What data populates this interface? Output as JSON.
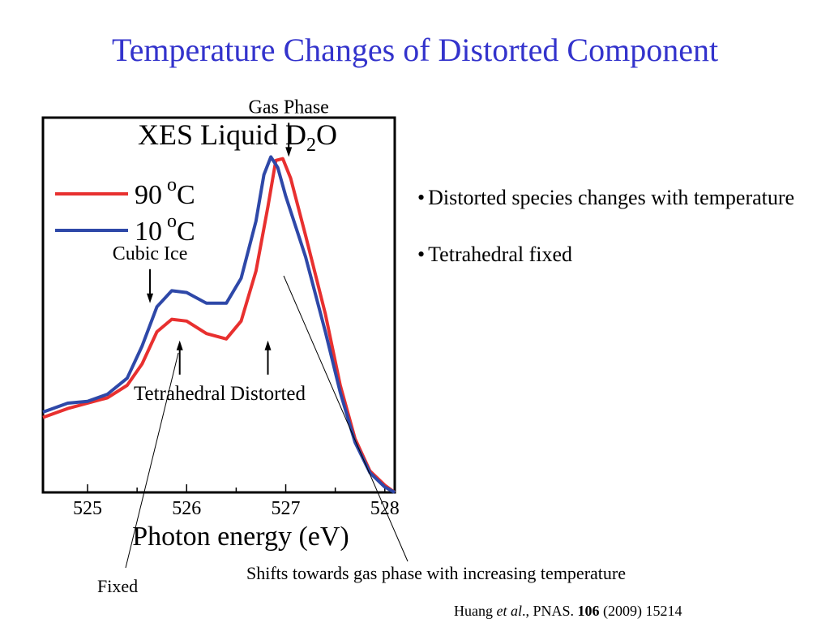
{
  "slide": {
    "title": "Temperature Changes of Distorted Component"
  },
  "bullets": [
    {
      "text": "Distorted species changes with temperature"
    },
    {
      "text": "Tetrahedral fixed"
    }
  ],
  "annotations": {
    "fixed_note": "Fixed",
    "shift_note": "Shifts towards gas phase with increasing temperature"
  },
  "citation": {
    "authors": "Huang",
    "etal": "et al",
    "journal": "., PNAS.",
    "volume": "106",
    "year_pages": "(2009) 15214"
  },
  "colors": {
    "title": "#3333cc",
    "series_90": "#e8302f",
    "series_10": "#2e48a8"
  },
  "chart_data": {
    "type": "line",
    "title": "XES Liquid D2O",
    "title_parts": {
      "main": "XES Liquid D",
      "sub": "2",
      "end": "O"
    },
    "xlabel": "Photon energy (eV)",
    "ylabel": "",
    "xlim": [
      524.55,
      528.1
    ],
    "ylim": [
      0,
      1.05
    ],
    "xticks": [
      525,
      526,
      527,
      528
    ],
    "xtick_labels": [
      "525",
      "526",
      "527",
      "528"
    ],
    "grid": false,
    "legend_position": "top-left",
    "series": [
      {
        "name": "90 oC",
        "label_num": "90",
        "label_deg": "o",
        "label_unit": "C",
        "color": "#e8302f",
        "points": [
          [
            524.55,
            0.21
          ],
          [
            524.8,
            0.235
          ],
          [
            525.0,
            0.25
          ],
          [
            525.2,
            0.265
          ],
          [
            525.4,
            0.3
          ],
          [
            525.55,
            0.36
          ],
          [
            525.7,
            0.45
          ],
          [
            525.85,
            0.485
          ],
          [
            526.0,
            0.48
          ],
          [
            526.2,
            0.445
          ],
          [
            526.4,
            0.43
          ],
          [
            526.55,
            0.48
          ],
          [
            526.7,
            0.62
          ],
          [
            526.82,
            0.8
          ],
          [
            526.9,
            0.93
          ],
          [
            526.97,
            0.935
          ],
          [
            527.05,
            0.88
          ],
          [
            527.2,
            0.72
          ],
          [
            527.4,
            0.5
          ],
          [
            527.55,
            0.3
          ],
          [
            527.7,
            0.15
          ],
          [
            527.85,
            0.06
          ],
          [
            528.0,
            0.02
          ],
          [
            528.1,
            0.0
          ]
        ]
      },
      {
        "name": "10 oC",
        "label_num": "10",
        "label_deg": "o",
        "label_unit": "C",
        "color": "#2e48a8",
        "points": [
          [
            524.55,
            0.225
          ],
          [
            524.8,
            0.25
          ],
          [
            525.0,
            0.255
          ],
          [
            525.2,
            0.275
          ],
          [
            525.4,
            0.32
          ],
          [
            525.55,
            0.41
          ],
          [
            525.7,
            0.52
          ],
          [
            525.85,
            0.565
          ],
          [
            526.0,
            0.56
          ],
          [
            526.2,
            0.53
          ],
          [
            526.4,
            0.53
          ],
          [
            526.55,
            0.6
          ],
          [
            526.7,
            0.76
          ],
          [
            526.78,
            0.89
          ],
          [
            526.85,
            0.94
          ],
          [
            526.92,
            0.91
          ],
          [
            527.0,
            0.83
          ],
          [
            527.2,
            0.66
          ],
          [
            527.4,
            0.45
          ],
          [
            527.55,
            0.28
          ],
          [
            527.7,
            0.14
          ],
          [
            527.85,
            0.055
          ],
          [
            528.0,
            0.015
          ],
          [
            528.1,
            0.0
          ]
        ]
      }
    ],
    "annotations": [
      {
        "text": "Gas Phase",
        "x": 527.03,
        "y": 0.94,
        "direction": "down"
      },
      {
        "text": "Cubic Ice",
        "x": 525.63,
        "y": 0.53,
        "direction": "down"
      },
      {
        "text": "Tetrahedral",
        "x": 525.93,
        "y": 0.33,
        "direction": "up"
      },
      {
        "text": "Distorted",
        "x": 526.82,
        "y": 0.33,
        "direction": "up"
      }
    ]
  }
}
